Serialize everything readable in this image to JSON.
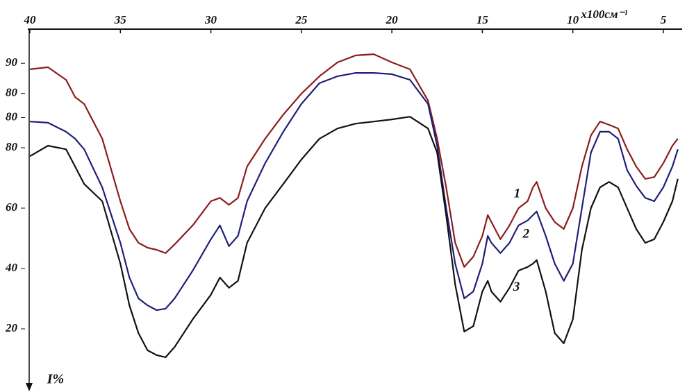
{
  "chart_data": {
    "type": "line",
    "x_label": "x100см⁻¹",
    "y_label": "I%",
    "x": [
      40,
      39,
      38,
      37.5,
      37,
      36,
      35,
      34.5,
      34,
      33.5,
      33,
      32.5,
      32,
      31,
      30,
      29.5,
      29,
      28.5,
      28,
      27,
      26,
      25,
      24,
      23,
      22,
      21,
      20,
      19,
      18,
      17.5,
      17,
      16.5,
      16,
      15.5,
      15,
      14.7,
      14.5,
      14,
      13.5,
      13,
      12.5,
      12.2,
      12,
      11.5,
      11,
      10.5,
      10,
      9.5,
      9,
      8.5,
      8,
      7.5,
      7,
      6.5,
      6,
      5.5,
      5,
      4.5,
      4.2
    ],
    "series": [
      {
        "name": "1",
        "color": "#8b1c1c",
        "values": [
          106,
          106.7,
          102.5,
          96.8,
          94.5,
          83,
          62.3,
          53.1,
          48.5,
          46.9,
          46.2,
          45.1,
          48,
          54.3,
          62.3,
          63.4,
          61.1,
          63.4,
          73.8,
          83,
          91,
          97.9,
          103.7,
          108.3,
          110.6,
          111,
          108.3,
          106,
          95.6,
          83,
          66.9,
          48.5,
          40.5,
          43.9,
          50.8,
          57.7,
          55.4,
          49.7,
          54.3,
          60,
          62.3,
          66.9,
          68.7,
          60,
          55.4,
          53.1,
          60,
          73.8,
          84.1,
          88.7,
          87.6,
          86.4,
          79.5,
          73.8,
          69.7,
          70.3,
          74.9,
          80.7,
          83
        ]
      },
      {
        "name": "2",
        "color": "#1f1f7a",
        "values": [
          88.7,
          88.3,
          85.3,
          83,
          79.5,
          66.9,
          48.5,
          37,
          30.1,
          27.8,
          26.2,
          26.7,
          30.1,
          39.3,
          49.7,
          54.3,
          47.4,
          50.8,
          62.3,
          74.9,
          85.3,
          94.5,
          101.4,
          103.7,
          104.8,
          104.8,
          104.4,
          102.5,
          94.5,
          80.7,
          60,
          41.6,
          30.1,
          32.4,
          41.6,
          50.8,
          48.5,
          45.1,
          48.5,
          54.3,
          55.9,
          57.7,
          58.9,
          50.8,
          41.6,
          35.9,
          41.6,
          60,
          78.4,
          85.3,
          85.3,
          83,
          72.6,
          67.4,
          63.4,
          62.3,
          66.9,
          73.8,
          79.5
        ]
      },
      {
        "name": "3",
        "color": "#111111",
        "values": [
          77.2,
          80.7,
          79.5,
          73.8,
          68,
          62.3,
          41.6,
          27.8,
          18.6,
          12.9,
          11.3,
          10.6,
          14,
          23.2,
          31.3,
          37,
          33.6,
          35.9,
          48.5,
          60,
          68,
          76.1,
          83,
          86.4,
          88,
          88.7,
          89.4,
          90.3,
          86.4,
          78.4,
          57.7,
          34.7,
          19.1,
          20.9,
          32.4,
          35.9,
          32.4,
          29,
          33.6,
          39.3,
          40.5,
          41.6,
          42.8,
          32.4,
          18.6,
          15.2,
          23.2,
          46.2,
          60,
          66.9,
          68.7,
          66.9,
          60,
          53.1,
          48.5,
          49.7,
          55.4,
          62.3,
          69.7
        ]
      }
    ],
    "xlim": [
      40,
      4
    ],
    "xticks": [
      40,
      35,
      30,
      25,
      20,
      15,
      10,
      5
    ],
    "ylim": [
      0,
      120
    ],
    "yticks": [
      20,
      40,
      60,
      80,
      {
        "value": 90,
        "label": "80"
      },
      {
        "value": 98,
        "label": "80"
      },
      {
        "value": 108,
        "label": "90"
      }
    ],
    "grid": false
  }
}
